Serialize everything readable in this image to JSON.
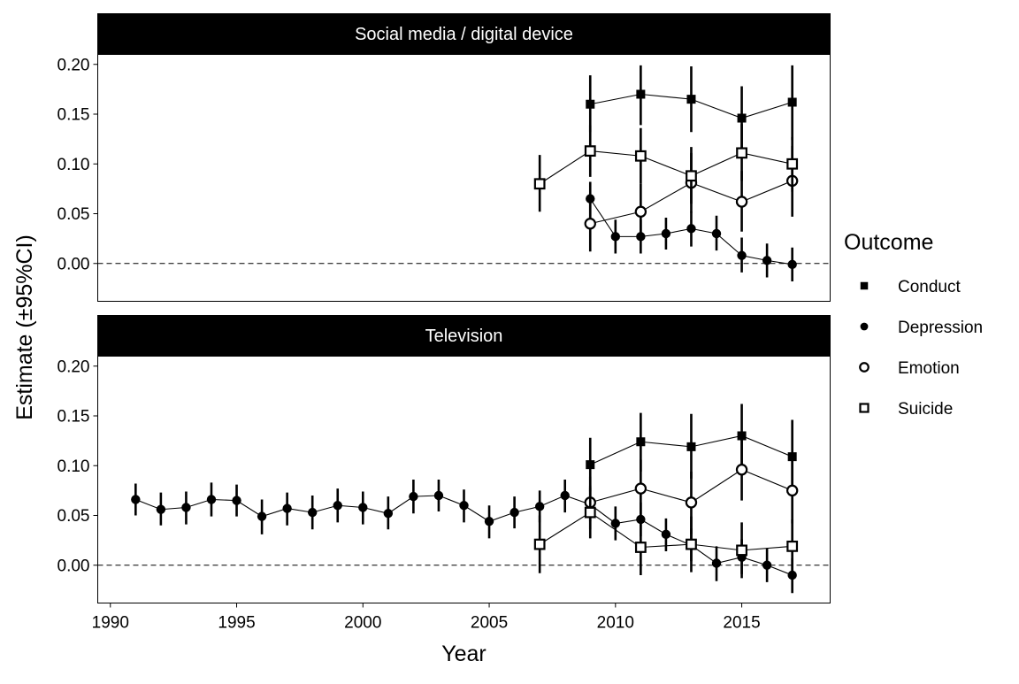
{
  "chart_data": {
    "type": "scatter",
    "xlabel": "Year",
    "ylabel": "Estimate (±95%CI)",
    "xlim": [
      1989.5,
      2018.5
    ],
    "ylim": [
      -0.038,
      0.21
    ],
    "xticks": [
      1990,
      1995,
      2000,
      2005,
      2010,
      2015
    ],
    "yticks": [
      0.0,
      0.05,
      0.1,
      0.15,
      0.2
    ],
    "ytick_labels": [
      "0.00",
      "0.05",
      "0.10",
      "0.15",
      "0.20"
    ],
    "reference_line": 0,
    "legend": {
      "title": "Outcome",
      "placement": "right",
      "entries": [
        {
          "name": "Conduct",
          "shape": "filled-square"
        },
        {
          "name": "Depression",
          "shape": "filled-circle"
        },
        {
          "name": "Emotion",
          "shape": "open-circle"
        },
        {
          "name": "Suicide",
          "shape": "open-square"
        }
      ]
    },
    "panels": [
      {
        "title": "Social media / digital device",
        "series": [
          {
            "name": "Conduct",
            "points": [
              {
                "x": 2009,
                "y": 0.16,
                "lo": 0.132,
                "hi": 0.189
              },
              {
                "x": 2011,
                "y": 0.17,
                "lo": 0.139,
                "hi": 0.199
              },
              {
                "x": 2013,
                "y": 0.165,
                "lo": 0.132,
                "hi": 0.198
              },
              {
                "x": 2015,
                "y": 0.146,
                "lo": 0.114,
                "hi": 0.178
              },
              {
                "x": 2017,
                "y": 0.162,
                "lo": 0.124,
                "hi": 0.199
              }
            ]
          },
          {
            "name": "Depression",
            "points": [
              {
                "x": 2009,
                "y": 0.065,
                "lo": 0.046,
                "hi": 0.082
              },
              {
                "x": 2010,
                "y": 0.027,
                "lo": 0.01,
                "hi": 0.044
              },
              {
                "x": 2011,
                "y": 0.027,
                "lo": 0.01,
                "hi": 0.044
              },
              {
                "x": 2012,
                "y": 0.03,
                "lo": 0.014,
                "hi": 0.046
              },
              {
                "x": 2013,
                "y": 0.035,
                "lo": 0.017,
                "hi": 0.052
              },
              {
                "x": 2014,
                "y": 0.03,
                "lo": 0.013,
                "hi": 0.048
              },
              {
                "x": 2015,
                "y": 0.008,
                "lo": -0.009,
                "hi": 0.026
              },
              {
                "x": 2016,
                "y": 0.003,
                "lo": -0.014,
                "hi": 0.02
              },
              {
                "x": 2017,
                "y": -0.001,
                "lo": -0.018,
                "hi": 0.016
              }
            ]
          },
          {
            "name": "Emotion",
            "points": [
              {
                "x": 2009,
                "y": 0.04,
                "lo": 0.012,
                "hi": 0.068
              },
              {
                "x": 2011,
                "y": 0.052,
                "lo": 0.024,
                "hi": 0.08
              },
              {
                "x": 2013,
                "y": 0.081,
                "lo": 0.051,
                "hi": 0.111
              },
              {
                "x": 2015,
                "y": 0.062,
                "lo": 0.032,
                "hi": 0.093
              },
              {
                "x": 2017,
                "y": 0.083,
                "lo": 0.047,
                "hi": 0.118
              }
            ]
          },
          {
            "name": "Suicide",
            "points": [
              {
                "x": 2007,
                "y": 0.08,
                "lo": 0.052,
                "hi": 0.109
              },
              {
                "x": 2009,
                "y": 0.113,
                "lo": 0.087,
                "hi": 0.139
              },
              {
                "x": 2011,
                "y": 0.108,
                "lo": 0.08,
                "hi": 0.136
              },
              {
                "x": 2013,
                "y": 0.088,
                "lo": 0.06,
                "hi": 0.117
              },
              {
                "x": 2015,
                "y": 0.111,
                "lo": 0.083,
                "hi": 0.14
              },
              {
                "x": 2017,
                "y": 0.1,
                "lo": 0.072,
                "hi": 0.127
              }
            ]
          }
        ]
      },
      {
        "title": "Television",
        "series": [
          {
            "name": "Conduct",
            "points": [
              {
                "x": 2009,
                "y": 0.101,
                "lo": 0.074,
                "hi": 0.128
              },
              {
                "x": 2011,
                "y": 0.124,
                "lo": 0.094,
                "hi": 0.153
              },
              {
                "x": 2013,
                "y": 0.119,
                "lo": 0.087,
                "hi": 0.152
              },
              {
                "x": 2015,
                "y": 0.13,
                "lo": 0.099,
                "hi": 0.162
              },
              {
                "x": 2017,
                "y": 0.109,
                "lo": 0.073,
                "hi": 0.146
              }
            ]
          },
          {
            "name": "Depression",
            "points": [
              {
                "x": 1991,
                "y": 0.066,
                "lo": 0.05,
                "hi": 0.082
              },
              {
                "x": 1992,
                "y": 0.056,
                "lo": 0.04,
                "hi": 0.073
              },
              {
                "x": 1993,
                "y": 0.058,
                "lo": 0.041,
                "hi": 0.074
              },
              {
                "x": 1994,
                "y": 0.066,
                "lo": 0.049,
                "hi": 0.083
              },
              {
                "x": 1995,
                "y": 0.065,
                "lo": 0.049,
                "hi": 0.081
              },
              {
                "x": 1996,
                "y": 0.049,
                "lo": 0.031,
                "hi": 0.066
              },
              {
                "x": 1997,
                "y": 0.057,
                "lo": 0.04,
                "hi": 0.073
              },
              {
                "x": 1998,
                "y": 0.053,
                "lo": 0.036,
                "hi": 0.07
              },
              {
                "x": 1999,
                "y": 0.06,
                "lo": 0.043,
                "hi": 0.077
              },
              {
                "x": 2000,
                "y": 0.058,
                "lo": 0.041,
                "hi": 0.074
              },
              {
                "x": 2001,
                "y": 0.052,
                "lo": 0.036,
                "hi": 0.069
              },
              {
                "x": 2002,
                "y": 0.069,
                "lo": 0.052,
                "hi": 0.086
              },
              {
                "x": 2003,
                "y": 0.07,
                "lo": 0.054,
                "hi": 0.086
              },
              {
                "x": 2004,
                "y": 0.06,
                "lo": 0.043,
                "hi": 0.076
              },
              {
                "x": 2005,
                "y": 0.044,
                "lo": 0.027,
                "hi": 0.06
              },
              {
                "x": 2006,
                "y": 0.053,
                "lo": 0.037,
                "hi": 0.069
              },
              {
                "x": 2007,
                "y": 0.059,
                "lo": 0.043,
                "hi": 0.075
              },
              {
                "x": 2008,
                "y": 0.07,
                "lo": 0.053,
                "hi": 0.086
              },
              {
                "x": 2009,
                "y": 0.061,
                "lo": 0.044,
                "hi": 0.078
              },
              {
                "x": 2010,
                "y": 0.042,
                "lo": 0.025,
                "hi": 0.059
              },
              {
                "x": 2011,
                "y": 0.046,
                "lo": 0.029,
                "hi": 0.063
              },
              {
                "x": 2012,
                "y": 0.031,
                "lo": 0.014,
                "hi": 0.047
              },
              {
                "x": 2013,
                "y": 0.02,
                "lo": 0.004,
                "hi": 0.037
              },
              {
                "x": 2014,
                "y": 0.002,
                "lo": -0.016,
                "hi": 0.019
              },
              {
                "x": 2015,
                "y": 0.008,
                "lo": -0.009,
                "hi": 0.026
              },
              {
                "x": 2016,
                "y": 0.0,
                "lo": -0.017,
                "hi": 0.017
              },
              {
                "x": 2017,
                "y": -0.01,
                "lo": -0.028,
                "hi": 0.007
              }
            ]
          },
          {
            "name": "Emotion",
            "points": [
              {
                "x": 2009,
                "y": 0.063,
                "lo": 0.036,
                "hi": 0.089
              },
              {
                "x": 2011,
                "y": 0.077,
                "lo": 0.048,
                "hi": 0.106
              },
              {
                "x": 2013,
                "y": 0.063,
                "lo": 0.031,
                "hi": 0.094
              },
              {
                "x": 2015,
                "y": 0.096,
                "lo": 0.065,
                "hi": 0.127
              },
              {
                "x": 2017,
                "y": 0.075,
                "lo": 0.042,
                "hi": 0.108
              }
            ]
          },
          {
            "name": "Suicide",
            "points": [
              {
                "x": 2007,
                "y": 0.021,
                "lo": -0.008,
                "hi": 0.05
              },
              {
                "x": 2009,
                "y": 0.053,
                "lo": 0.027,
                "hi": 0.08
              },
              {
                "x": 2011,
                "y": 0.018,
                "lo": -0.01,
                "hi": 0.047
              },
              {
                "x": 2013,
                "y": 0.021,
                "lo": -0.007,
                "hi": 0.049
              },
              {
                "x": 2015,
                "y": 0.015,
                "lo": -0.013,
                "hi": 0.043
              },
              {
                "x": 2017,
                "y": 0.019,
                "lo": -0.008,
                "hi": 0.046
              }
            ]
          }
        ]
      }
    ]
  }
}
